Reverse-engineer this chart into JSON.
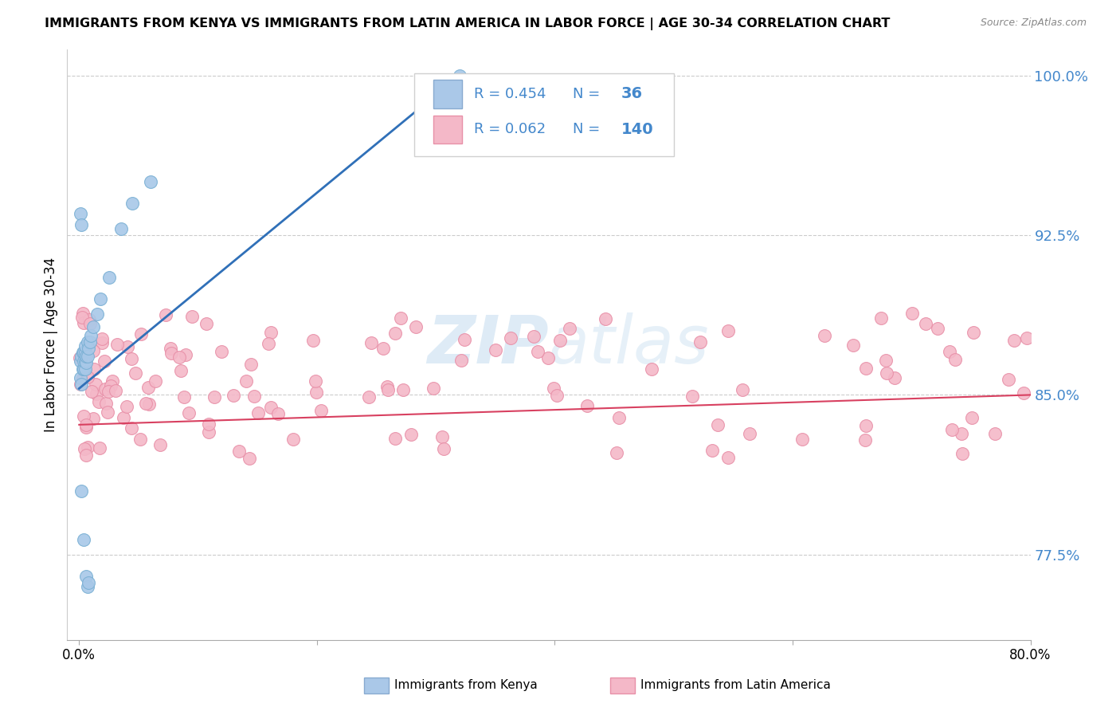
{
  "title": "IMMIGRANTS FROM KENYA VS IMMIGRANTS FROM LATIN AMERICA IN LABOR FORCE | AGE 30-34 CORRELATION CHART",
  "source": "Source: ZipAtlas.com",
  "ylabel": "In Labor Force | Age 30-34",
  "xlim": [
    -0.01,
    0.8
  ],
  "ylim": [
    0.735,
    1.012
  ],
  "yticks": [
    0.775,
    0.85,
    0.925,
    1.0
  ],
  "ytick_labels": [
    "77.5%",
    "85.0%",
    "92.5%",
    "100.0%"
  ],
  "legend_label1": "Immigrants from Kenya",
  "legend_label2": "Immigrants from Latin America",
  "blue_marker_color": "#a8c8e8",
  "blue_edge_color": "#7ab0d4",
  "pink_marker_color": "#f4b8c8",
  "pink_edge_color": "#e890a8",
  "trend_blue": "#3070b8",
  "trend_pink": "#d84060",
  "legend_blue_fill": "#aac8e8",
  "legend_blue_edge": "#88aad0",
  "legend_pink_fill": "#f4b8c8",
  "legend_pink_edge": "#e890a8",
  "text_blue": "#4488cc",
  "watermark_color": "#c8dff0",
  "grid_color": "#cccccc"
}
